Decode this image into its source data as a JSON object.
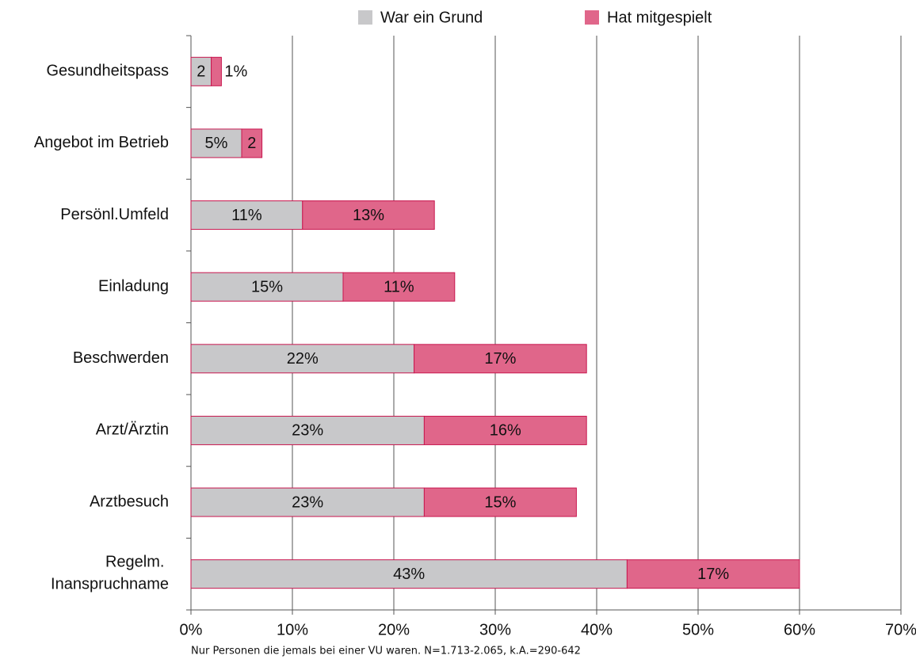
{
  "chart_data": {
    "type": "stacked-barh",
    "categories": [
      "Gesundheitspass",
      "Angebot im Betrieb",
      "Persönl.Umfeld",
      "Einladung",
      "Beschwerden",
      "Arzt/Ärztin",
      "Arztbesuch",
      "Regelm. Inanspruchname"
    ],
    "series": [
      {
        "name": "War ein Grund",
        "color": "#c8c8ca",
        "values": [
          2,
          5,
          11,
          15,
          22,
          23,
          23,
          43
        ],
        "value_labels": [
          "2",
          "5%",
          "11%",
          "15%",
          "22%",
          "23%",
          "23%",
          "43%"
        ]
      },
      {
        "name": "Hat mitgespielt",
        "color": "#e0668a",
        "values": [
          1,
          2,
          13,
          11,
          17,
          16,
          15,
          17
        ],
        "value_labels": [
          "1%",
          "2",
          "13%",
          "11%",
          "17%",
          "16%",
          "15%",
          "17%"
        ]
      }
    ],
    "xlim": [
      0,
      70
    ],
    "xticks": [
      {
        "value": 0,
        "label": "0%"
      },
      {
        "value": 10,
        "label": "10%"
      },
      {
        "value": 20,
        "label": "20%"
      },
      {
        "value": 30,
        "label": "30%"
      },
      {
        "value": 40,
        "label": "40%"
      },
      {
        "value": 50,
        "label": "50%"
      },
      {
        "value": 60,
        "label": "60%"
      },
      {
        "value": 70,
        "label": "70%"
      }
    ],
    "grid": true,
    "legend": "top",
    "footnote": "Nur Personen die jemals bei einer VU waren. N=1.713-2.065, k.A.=290-642"
  }
}
